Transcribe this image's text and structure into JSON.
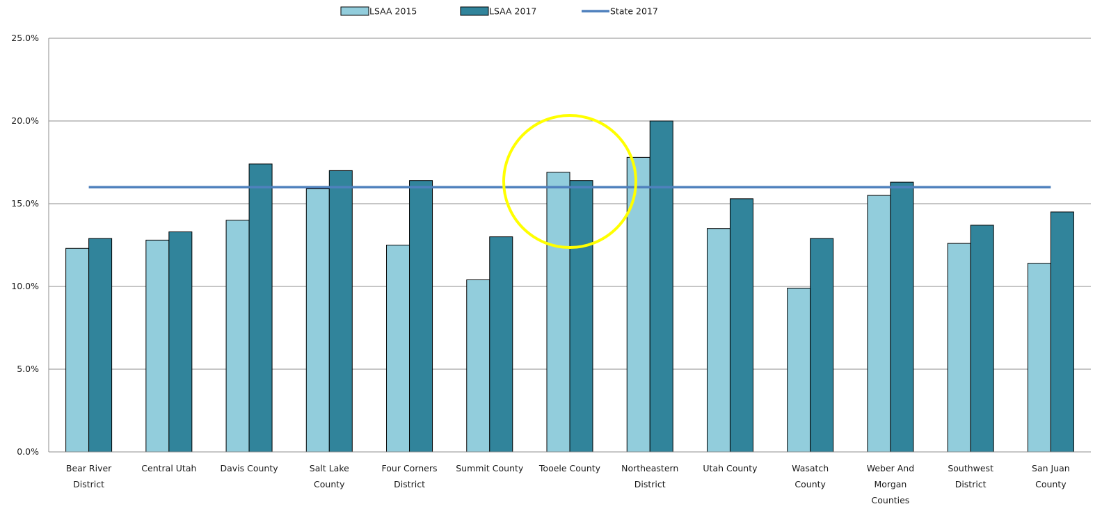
{
  "chart_data": {
    "type": "bar",
    "categories": [
      [
        "Bear River",
        "District"
      ],
      [
        "Central Utah"
      ],
      [
        "Davis County"
      ],
      [
        "Salt Lake",
        "County"
      ],
      [
        "Four Corners",
        "District"
      ],
      [
        "Summit County"
      ],
      [
        "Tooele County"
      ],
      [
        "Northeastern",
        "District"
      ],
      [
        "Utah County"
      ],
      [
        "Wasatch",
        "County"
      ],
      [
        "Weber And",
        "Morgan",
        "Counties"
      ],
      [
        "Southwest",
        "District"
      ],
      [
        "San Juan",
        "County"
      ]
    ],
    "series": [
      {
        "name": "LSAA 2015",
        "color": "#92cddc",
        "values": [
          12.3,
          12.8,
          14.0,
          15.9,
          12.5,
          10.4,
          16.9,
          17.8,
          13.5,
          9.9,
          15.5,
          12.6,
          11.4
        ]
      },
      {
        "name": "LSAA 2017",
        "color": "#31849b",
        "values": [
          12.9,
          13.3,
          17.4,
          17.0,
          16.4,
          13.0,
          16.4,
          20.0,
          15.3,
          12.9,
          16.3,
          13.7,
          14.5
        ]
      }
    ],
    "reference_line": {
      "name": "State 2017",
      "value": 16.0,
      "color": "#4f81bd"
    },
    "ylim": [
      0,
      25
    ],
    "yticks": [
      "0.0%",
      "5.0%",
      "10.0%",
      "15.0%",
      "20.0%",
      "25.0%"
    ],
    "ytick_values": [
      0,
      5,
      10,
      15,
      20,
      25
    ],
    "grid": true,
    "legend_position": "top-center",
    "highlight": {
      "shape": "circle",
      "color": "#ffff00",
      "category_index": 6
    }
  }
}
